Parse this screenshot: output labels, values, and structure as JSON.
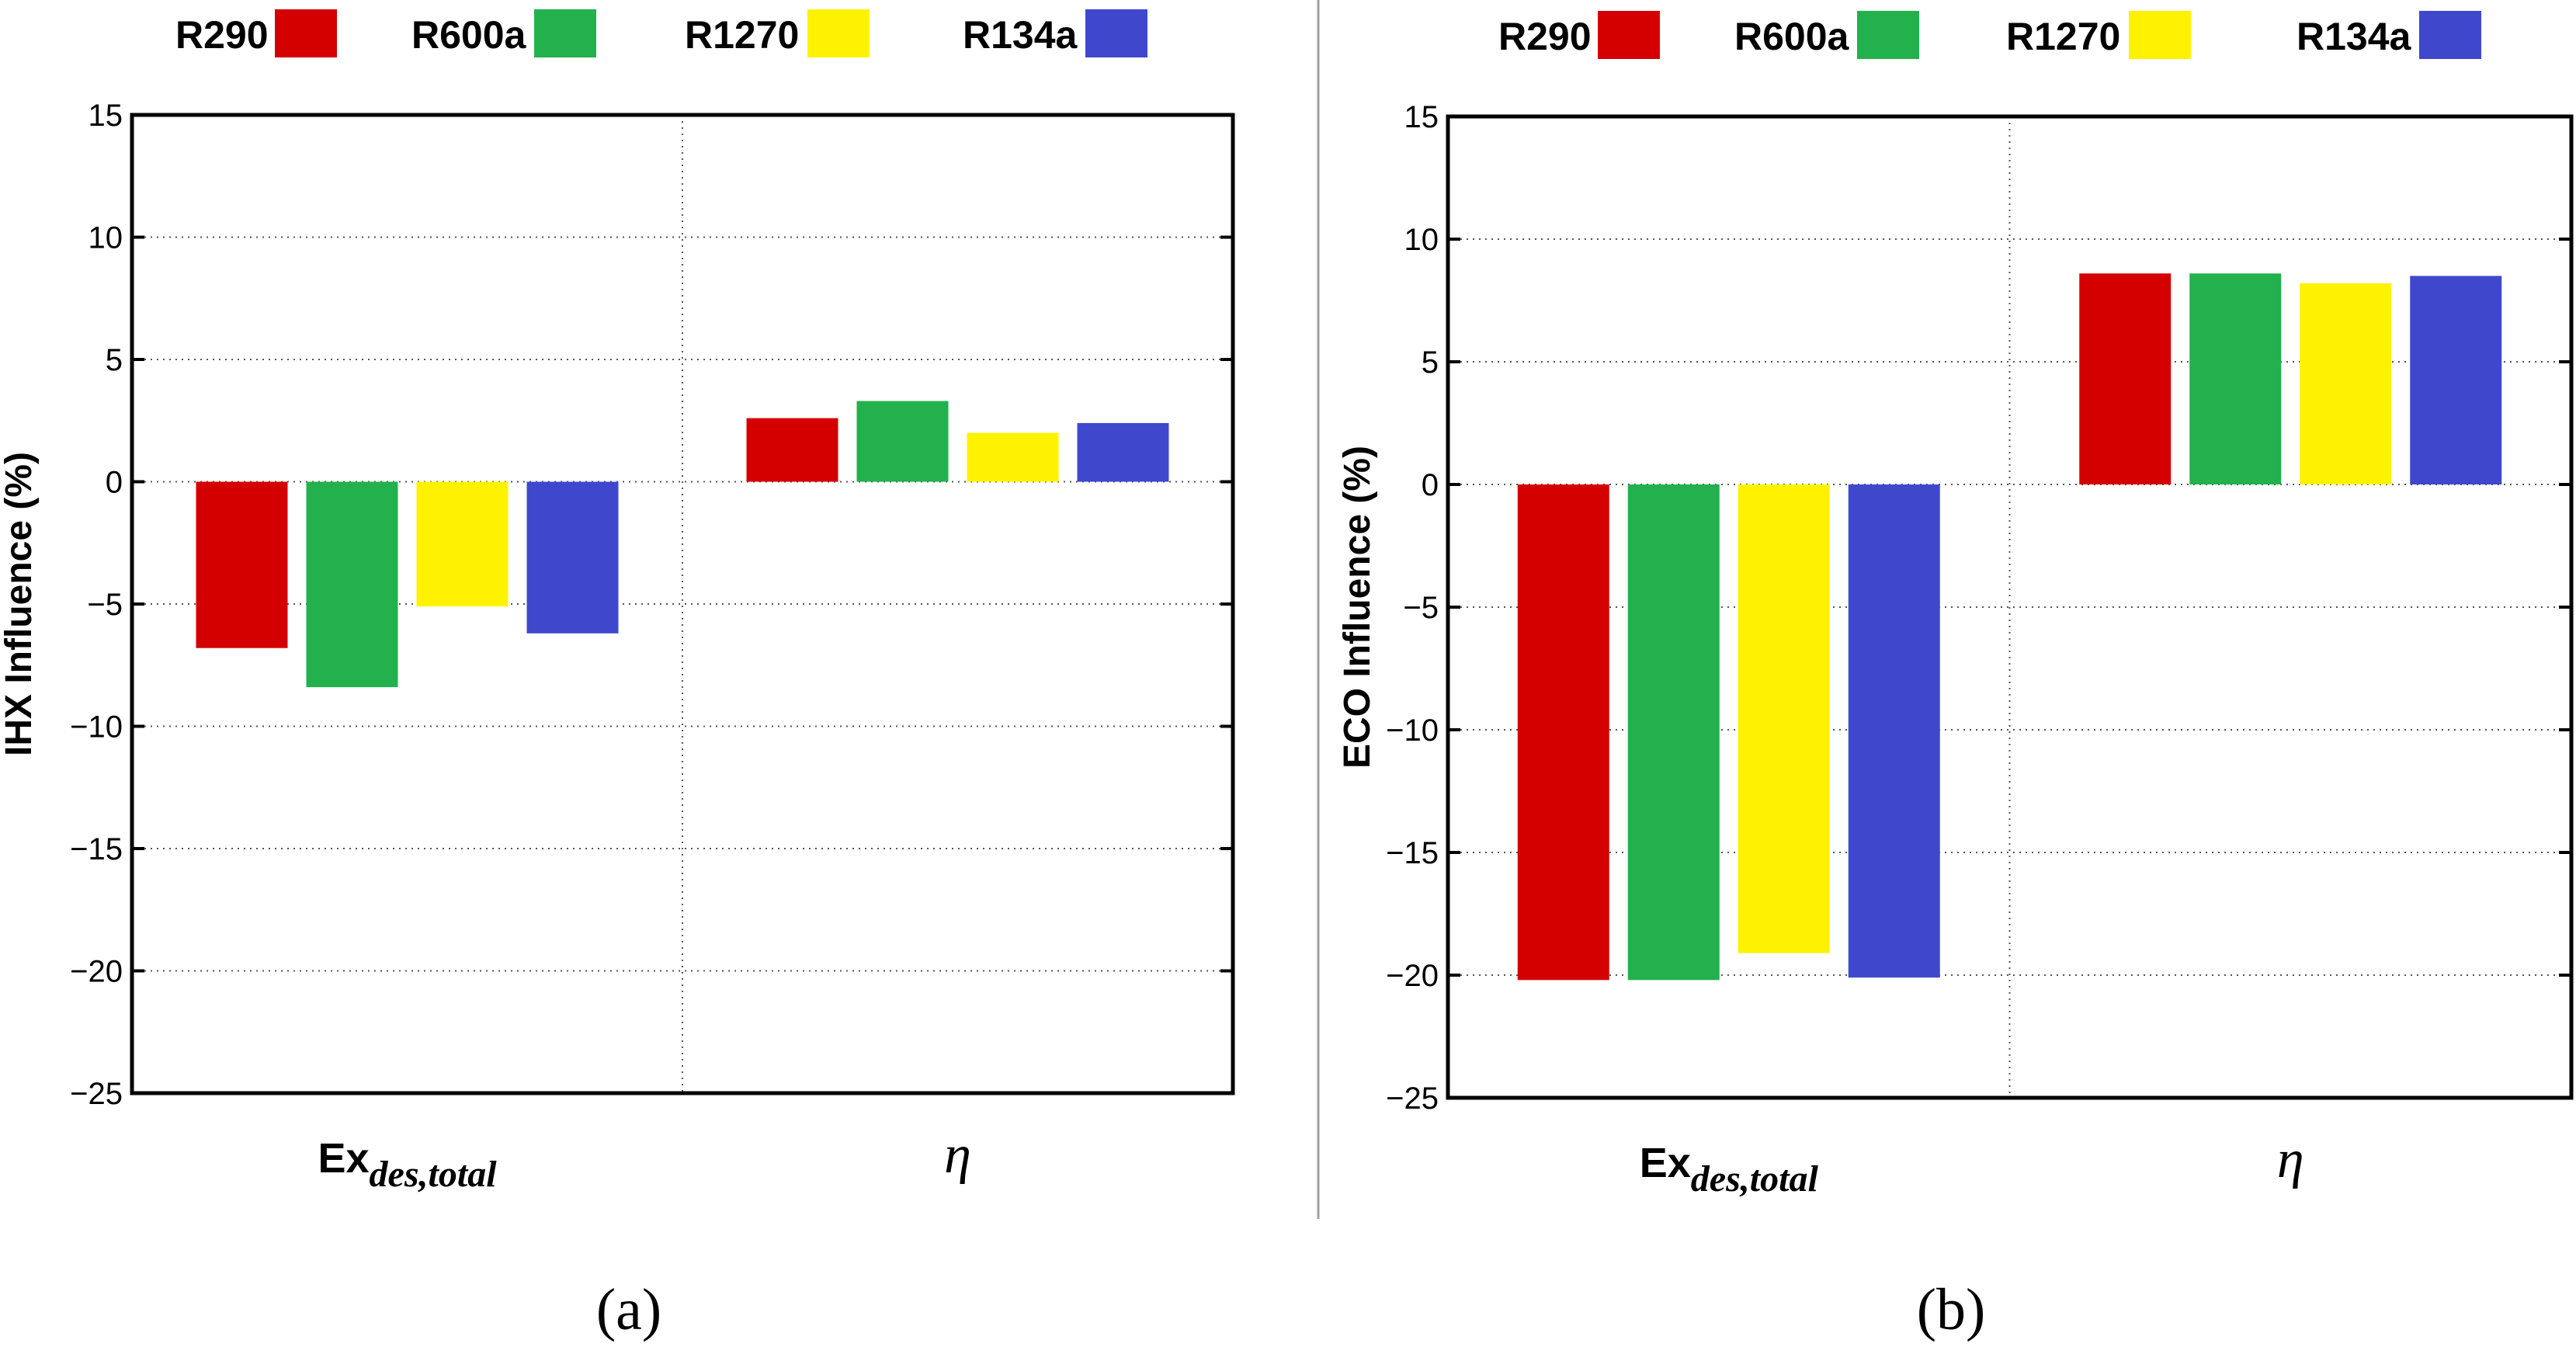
{
  "chart_data": [
    {
      "type": "bar",
      "panel_label": "(a)",
      "ylabel": "IHX Influence (%)",
      "ylim": [
        -25,
        15
      ],
      "yticks": [
        15,
        10,
        5,
        0,
        -5,
        -10,
        -15,
        -20,
        -25
      ],
      "ytick_labels": [
        "15",
        "10",
        "5",
        "0",
        "−5",
        "−10",
        "−15",
        "−20",
        "−25"
      ],
      "grid": true,
      "legend_position": "top",
      "categories": [
        {
          "main": "Ex",
          "sub": "des,total"
        },
        {
          "main": "η",
          "sub": ""
        }
      ],
      "series": [
        {
          "name": "R290",
          "color": "#d40000",
          "values": [
            -6.8,
            2.6
          ]
        },
        {
          "name": "R600a",
          "color": "#22b14c",
          "values": [
            -8.4,
            3.3
          ]
        },
        {
          "name": "R1270",
          "color": "#fff200",
          "values": [
            -5.1,
            2.0
          ]
        },
        {
          "name": "R134a",
          "color": "#3f48cc",
          "values": [
            -6.2,
            2.4
          ]
        }
      ]
    },
    {
      "type": "bar",
      "panel_label": "(b)",
      "ylabel": "ECO Influence (%)",
      "ylim": [
        -25,
        15
      ],
      "yticks": [
        15,
        10,
        5,
        0,
        -5,
        -10,
        -15,
        -20,
        -25
      ],
      "ytick_labels": [
        "15",
        "10",
        "5",
        "0",
        "−5",
        "−10",
        "−15",
        "−20",
        "−25"
      ],
      "grid": true,
      "legend_position": "top",
      "categories": [
        {
          "main": "Ex",
          "sub": "des,total"
        },
        {
          "main": "η",
          "sub": ""
        }
      ],
      "series": [
        {
          "name": "R290",
          "color": "#d40000",
          "values": [
            -20.2,
            8.6
          ]
        },
        {
          "name": "R600a",
          "color": "#22b14c",
          "values": [
            -20.2,
            8.6
          ]
        },
        {
          "name": "R1270",
          "color": "#fff200",
          "values": [
            -19.1,
            8.2
          ]
        },
        {
          "name": "R134a",
          "color": "#3f48cc",
          "values": [
            -20.1,
            8.5
          ]
        }
      ]
    }
  ]
}
